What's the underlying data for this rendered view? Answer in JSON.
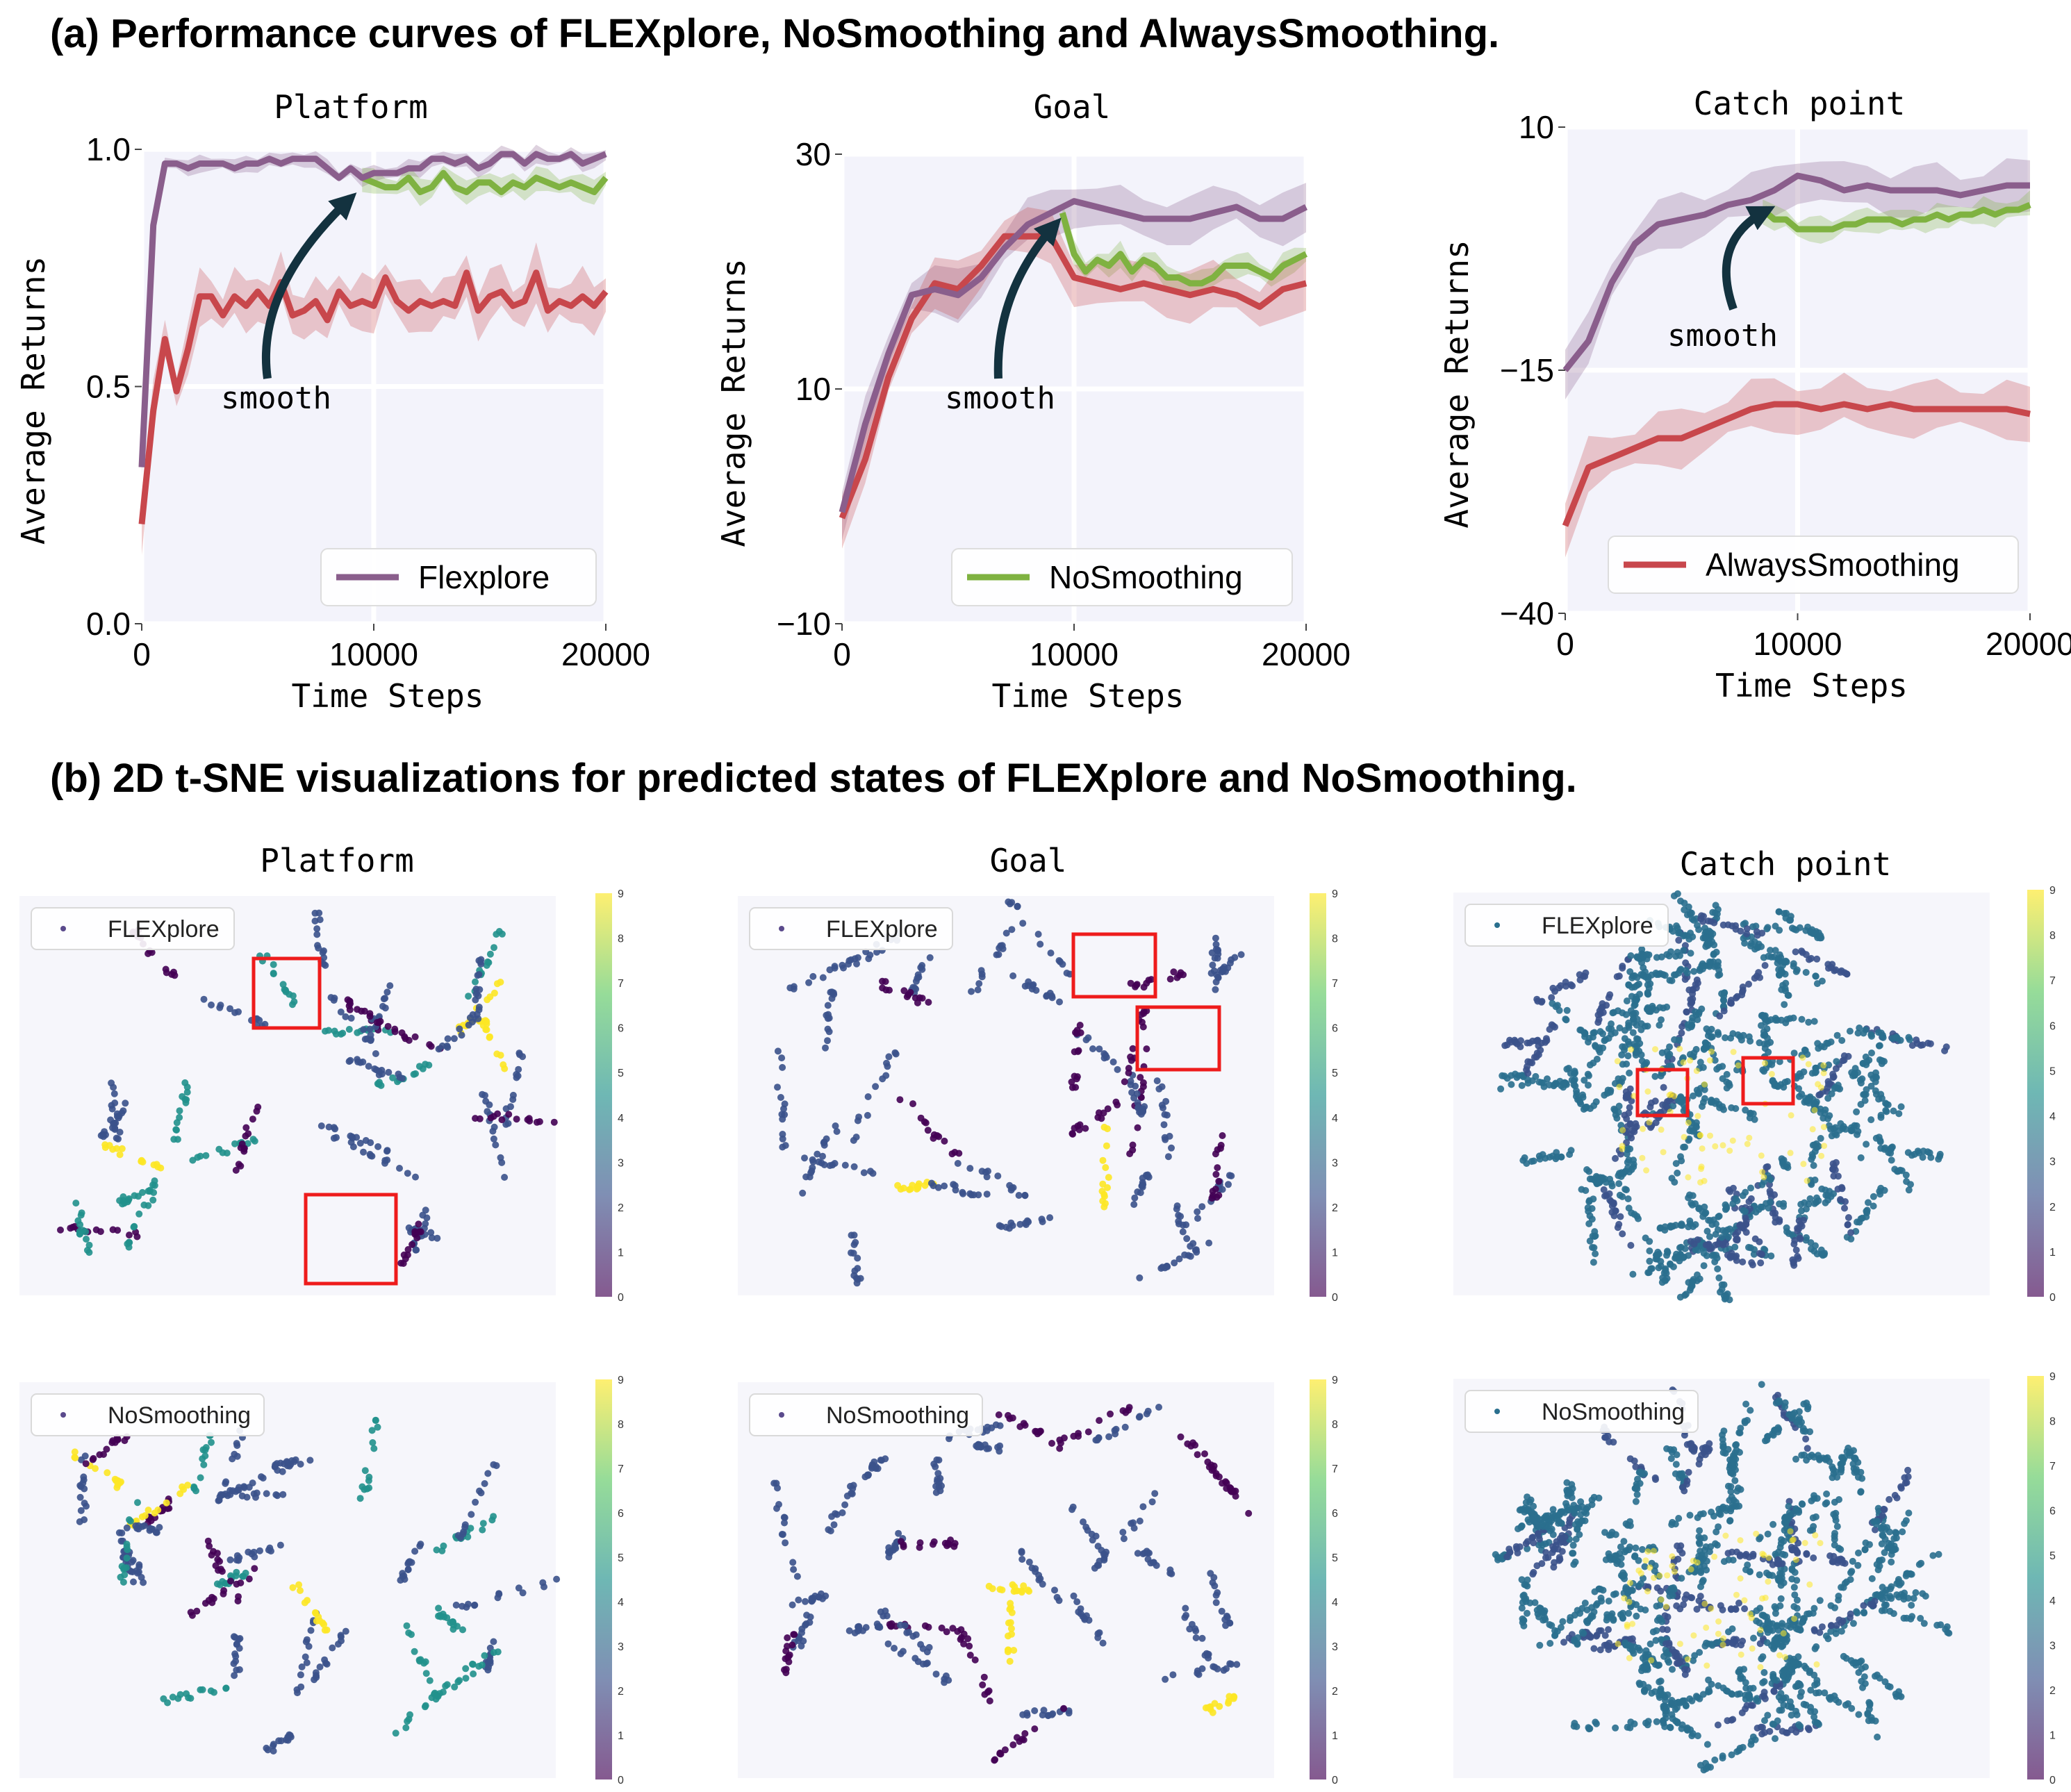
{
  "section_a_title": "(a) Performance curves of FLEXplore, NoSmoothing and AlwaysSmoothing.",
  "section_b_title": "(b) 2D t-SNE visualizations for predicted states of FLEXplore and NoSmoothing.",
  "colors": {
    "flexplore": "#8a5e8c",
    "nosmoothing": "#7fb241",
    "alwayssmoothing": "#c8474c",
    "plot_bg": "#f3f3fb",
    "arrow": "#13323f",
    "red_box": "#ee1c1c"
  },
  "chart_data": [
    {
      "type": "line",
      "title": "Platform",
      "xlabel": "Time Steps",
      "ylabel": "Average Returns",
      "xlim": [
        0,
        20000
      ],
      "ylim": [
        0.0,
        1.0
      ],
      "xticks": [
        "0",
        "10000",
        "20000"
      ],
      "yticks": [
        "0.0",
        "0.5",
        "1.0"
      ],
      "legend": "Flexplore",
      "annotation": "smooth",
      "series": [
        {
          "name": "Flexplore",
          "x": [
            0,
            500,
            1000,
            1500,
            2000,
            2500,
            3000,
            3500,
            4000,
            4500,
            5000,
            5500,
            6000,
            6500,
            7000,
            7500,
            8000,
            8500,
            9000,
            9500,
            10000,
            10500,
            11000,
            11500,
            12000,
            12500,
            13000,
            13500,
            14000,
            14500,
            15000,
            15500,
            16000,
            16500,
            17000,
            17500,
            18000,
            18500,
            19000,
            19500,
            20000
          ],
          "values": [
            0.33,
            0.84,
            0.97,
            0.97,
            0.96,
            0.97,
            0.97,
            0.97,
            0.96,
            0.97,
            0.97,
            0.98,
            0.97,
            0.98,
            0.98,
            0.98,
            0.96,
            0.94,
            0.96,
            0.94,
            0.95,
            0.95,
            0.95,
            0.96,
            0.96,
            0.98,
            0.98,
            0.97,
            0.98,
            0.96,
            0.97,
            0.99,
            0.99,
            0.97,
            0.99,
            0.98,
            0.98,
            0.99,
            0.97,
            0.98,
            0.99
          ]
        },
        {
          "name": "NoSmoothing",
          "x": [
            9500,
            10000,
            10500,
            11000,
            11500,
            12000,
            12500,
            13000,
            13500,
            14000,
            14500,
            15000,
            15500,
            16000,
            16500,
            17000,
            17500,
            18000,
            18500,
            19000,
            19500,
            20000
          ],
          "values": [
            0.94,
            0.93,
            0.92,
            0.92,
            0.94,
            0.91,
            0.92,
            0.95,
            0.92,
            0.91,
            0.93,
            0.93,
            0.91,
            0.93,
            0.92,
            0.94,
            0.93,
            0.92,
            0.93,
            0.92,
            0.91,
            0.94
          ]
        },
        {
          "name": "AlwaysSmoothing",
          "x": [
            0,
            500,
            1000,
            1500,
            2000,
            2500,
            3000,
            3500,
            4000,
            4500,
            5000,
            5500,
            6000,
            6500,
            7000,
            7500,
            8000,
            8500,
            9000,
            9500,
            10000,
            10500,
            11000,
            11500,
            12000,
            12500,
            13000,
            13500,
            14000,
            14500,
            15000,
            15500,
            16000,
            16500,
            17000,
            17500,
            18000,
            18500,
            19000,
            19500,
            20000
          ],
          "values": [
            0.21,
            0.45,
            0.6,
            0.49,
            0.58,
            0.69,
            0.69,
            0.65,
            0.69,
            0.67,
            0.7,
            0.67,
            0.72,
            0.65,
            0.66,
            0.68,
            0.64,
            0.7,
            0.67,
            0.68,
            0.67,
            0.73,
            0.68,
            0.66,
            0.68,
            0.67,
            0.68,
            0.67,
            0.74,
            0.66,
            0.69,
            0.7,
            0.67,
            0.68,
            0.74,
            0.66,
            0.68,
            0.67,
            0.69,
            0.67,
            0.7
          ]
        }
      ]
    },
    {
      "type": "line",
      "title": "Goal",
      "xlabel": "Time Steps",
      "ylabel": "Average Returns",
      "xlim": [
        0,
        20000
      ],
      "ylim": [
        -10,
        30
      ],
      "xticks": [
        "0",
        "10000",
        "20000"
      ],
      "yticks": [
        "−10",
        "10",
        "30"
      ],
      "legend": "NoSmoothing",
      "annotation": "smooth",
      "series": [
        {
          "name": "Flexplore",
          "x": [
            0,
            1000,
            2000,
            3000,
            4000,
            5000,
            6000,
            7000,
            8000,
            9000,
            10000,
            11000,
            12000,
            13000,
            14000,
            15000,
            16000,
            17000,
            18000,
            19000,
            20000
          ],
          "values": [
            -0.5,
            7,
            13,
            18,
            18.5,
            18,
            19.5,
            22,
            24,
            25,
            26,
            25.5,
            25,
            24.5,
            24.5,
            24.5,
            25,
            25.5,
            24.5,
            24.5,
            25.5
          ]
        },
        {
          "name": "NoSmoothing",
          "x": [
            9500,
            10000,
            10500,
            11000,
            11500,
            12000,
            12500,
            13000,
            13500,
            14000,
            14500,
            15000,
            15500,
            16000,
            16500,
            17000,
            17500,
            18000,
            18500,
            19000,
            19500,
            20000
          ],
          "values": [
            25,
            21.5,
            20,
            21,
            20.5,
            21.5,
            20,
            21,
            20.5,
            19.5,
            19.5,
            19,
            19,
            19.5,
            20.5,
            20.5,
            20.5,
            20,
            19.5,
            20.5,
            21,
            21.5
          ]
        },
        {
          "name": "AlwaysSmoothing",
          "x": [
            0,
            1000,
            2000,
            3000,
            4000,
            5000,
            6000,
            7000,
            8000,
            9000,
            10000,
            11000,
            12000,
            13000,
            14000,
            15000,
            16000,
            17000,
            18000,
            19000,
            20000
          ],
          "values": [
            -1,
            4,
            11,
            16,
            19,
            18.5,
            20.5,
            23,
            23,
            23,
            19.5,
            19,
            18.5,
            19,
            18.5,
            18,
            18.5,
            18,
            17,
            18.5,
            19
          ]
        }
      ]
    },
    {
      "type": "line",
      "title": "Catch point",
      "xlabel": "Time Steps",
      "ylabel": "Average Returns",
      "xlim": [
        0,
        20000
      ],
      "ylim": [
        -40,
        10
      ],
      "xticks": [
        "0",
        "10000",
        "20000"
      ],
      "yticks": [
        "−40",
        "−15",
        "10"
      ],
      "legend": "AlwaysSmoothing",
      "annotation": "smooth",
      "series": [
        {
          "name": "Flexplore",
          "x": [
            0,
            1000,
            2000,
            3000,
            4000,
            5000,
            6000,
            7000,
            8000,
            9000,
            10000,
            11000,
            12000,
            13000,
            14000,
            15000,
            16000,
            17000,
            18000,
            19000,
            20000
          ],
          "values": [
            -15,
            -12,
            -6,
            -2,
            0,
            0.5,
            1,
            2,
            2.5,
            3.5,
            5,
            4.5,
            3.5,
            4,
            3.5,
            3.5,
            3.5,
            3,
            3.5,
            4,
            4
          ]
        },
        {
          "name": "NoSmoothing",
          "x": [
            8500,
            9000,
            9500,
            10000,
            10500,
            11000,
            11500,
            12000,
            12500,
            13000,
            13500,
            14000,
            14500,
            15000,
            15500,
            16000,
            16500,
            17000,
            17500,
            18000,
            18500,
            19000,
            19500,
            20000
          ],
          "values": [
            1.5,
            0.5,
            0.5,
            -0.5,
            -0.5,
            -0.5,
            -0.5,
            0,
            0,
            0.5,
            0.5,
            0.5,
            0,
            0.5,
            0.5,
            1,
            0.5,
            1,
            1,
            1.5,
            1,
            1.5,
            1.5,
            2
          ]
        },
        {
          "name": "AlwaysSmoothing",
          "x": [
            0,
            1000,
            2000,
            3000,
            4000,
            5000,
            6000,
            7000,
            8000,
            9000,
            10000,
            11000,
            12000,
            13000,
            14000,
            15000,
            16000,
            17000,
            18000,
            19000,
            20000
          ],
          "values": [
            -31,
            -25,
            -24,
            -23,
            -22,
            -22,
            -21,
            -20,
            -19,
            -18.5,
            -18.5,
            -19,
            -18.5,
            -19,
            -18.5,
            -19,
            -19,
            -19,
            -19,
            -19,
            -19.5
          ]
        }
      ]
    },
    {
      "type": "scatter",
      "title": "Platform",
      "legend": "FLEXplore",
      "colorbar_ticks": [
        "0",
        "1",
        "2",
        "3",
        "4",
        "5",
        "6",
        "7",
        "8",
        "9"
      ],
      "highlight_boxes": 2
    },
    {
      "type": "scatter",
      "title": "Goal",
      "legend": "FLEXplore",
      "colorbar_ticks": [
        "0",
        "1",
        "2",
        "3",
        "4",
        "5",
        "6",
        "7",
        "8",
        "9"
      ],
      "highlight_boxes": 2
    },
    {
      "type": "scatter",
      "title": "Catch point",
      "legend": "FLEXplore",
      "colorbar_ticks": [
        "0",
        "1",
        "2",
        "3",
        "4",
        "5",
        "6",
        "7",
        "8",
        "9"
      ],
      "highlight_boxes": 2
    },
    {
      "type": "scatter",
      "title": "",
      "legend": "NoSmoothing",
      "colorbar_ticks": [
        "0",
        "1",
        "2",
        "3",
        "4",
        "5",
        "6",
        "7",
        "8",
        "9"
      ],
      "highlight_boxes": 0
    },
    {
      "type": "scatter",
      "title": "",
      "legend": "NoSmoothing",
      "colorbar_ticks": [
        "0",
        "1",
        "2",
        "3",
        "4",
        "5",
        "6",
        "7",
        "8",
        "9"
      ],
      "highlight_boxes": 0
    },
    {
      "type": "scatter",
      "title": "",
      "legend": "NoSmoothing",
      "colorbar_ticks": [
        "0",
        "1",
        "2",
        "3",
        "4",
        "5",
        "6",
        "7",
        "8",
        "9"
      ],
      "highlight_boxes": 0
    }
  ]
}
